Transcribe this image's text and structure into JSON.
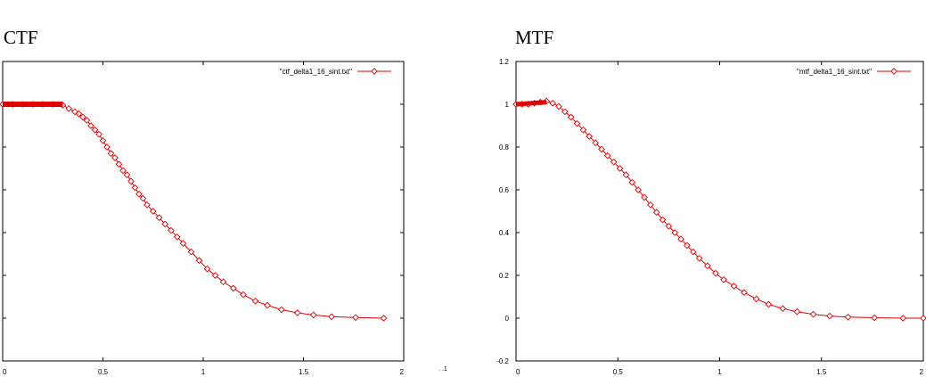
{
  "chart_data": [
    {
      "type": "line",
      "title": "CTF",
      "xlabel": "",
      "ylabel": "",
      "xlim": [
        0,
        2
      ],
      "ylim": [
        -0.2,
        1.2
      ],
      "xticks": [
        "0",
        "0.5",
        "1",
        "1.5",
        "2"
      ],
      "yticks": [],
      "legend_position": "top-right",
      "series": [
        {
          "name": "\"ctf_delta1_16_sint.txt\"",
          "color": "#e00000",
          "marker": "diamond",
          "x": [
            0.0,
            0.05,
            0.1,
            0.15,
            0.2,
            0.25,
            0.3,
            0.33,
            0.36,
            0.38,
            0.4,
            0.42,
            0.44,
            0.46,
            0.48,
            0.5,
            0.52,
            0.54,
            0.56,
            0.58,
            0.6,
            0.62,
            0.64,
            0.66,
            0.68,
            0.7,
            0.72,
            0.75,
            0.78,
            0.81,
            0.84,
            0.87,
            0.9,
            0.94,
            0.98,
            1.02,
            1.06,
            1.1,
            1.15,
            1.2,
            1.26,
            1.32,
            1.39,
            1.47,
            1.55,
            1.64,
            1.76,
            1.9
          ],
          "y": [
            1.0,
            1.0,
            1.0,
            1.0,
            1.0,
            1.0,
            0.995,
            0.98,
            0.965,
            0.955,
            0.94,
            0.925,
            0.9,
            0.88,
            0.86,
            0.83,
            0.8,
            0.77,
            0.75,
            0.72,
            0.69,
            0.67,
            0.64,
            0.61,
            0.58,
            0.56,
            0.53,
            0.5,
            0.47,
            0.44,
            0.41,
            0.38,
            0.35,
            0.31,
            0.27,
            0.23,
            0.2,
            0.17,
            0.14,
            0.11,
            0.08,
            0.06,
            0.04,
            0.025,
            0.015,
            0.007,
            0.003,
            0.0
          ]
        }
      ]
    },
    {
      "type": "line",
      "title": "MTF",
      "xlabel": "",
      "ylabel": "",
      "xlim": [
        0,
        2
      ],
      "ylim": [
        -0.2,
        1.2
      ],
      "xticks": [
        "0",
        "0.5",
        "1",
        "1.5",
        "2"
      ],
      "yticks": [
        "-0.2",
        "0",
        "0.2",
        "0.4",
        "0.6",
        "0.8",
        "1",
        "1.2"
      ],
      "legend_position": "top-right",
      "series": [
        {
          "name": "\"mtf_delta1_16_sint.txt\"",
          "color": "#e00000",
          "marker": "diamond",
          "x": [
            0.0,
            0.03,
            0.06,
            0.09,
            0.12,
            0.15,
            0.18,
            0.21,
            0.24,
            0.27,
            0.3,
            0.33,
            0.36,
            0.39,
            0.42,
            0.45,
            0.48,
            0.51,
            0.54,
            0.57,
            0.6,
            0.63,
            0.66,
            0.69,
            0.72,
            0.75,
            0.78,
            0.81,
            0.84,
            0.87,
            0.9,
            0.94,
            0.98,
            1.02,
            1.07,
            1.12,
            1.18,
            1.24,
            1.31,
            1.38,
            1.46,
            1.54,
            1.63,
            1.76,
            1.9,
            2.0
          ],
          "y": [
            1.0,
            1.0,
            1.0,
            1.005,
            1.01,
            1.015,
            1.005,
            0.99,
            0.965,
            0.94,
            0.91,
            0.88,
            0.85,
            0.82,
            0.79,
            0.76,
            0.73,
            0.7,
            0.67,
            0.635,
            0.6,
            0.565,
            0.53,
            0.495,
            0.46,
            0.43,
            0.4,
            0.37,
            0.34,
            0.31,
            0.28,
            0.245,
            0.21,
            0.18,
            0.15,
            0.12,
            0.09,
            0.065,
            0.045,
            0.03,
            0.018,
            0.01,
            0.005,
            0.002,
            0.0,
            0.0
          ]
        }
      ]
    }
  ],
  "stray_label": ". .1"
}
